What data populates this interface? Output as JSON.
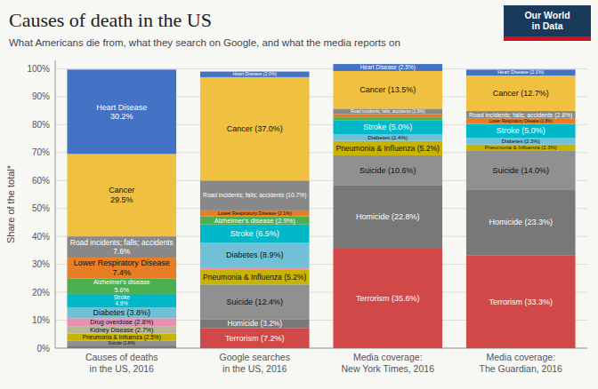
{
  "chart_data": {
    "type": "bar",
    "stacked": true,
    "title": "Causes of death in the US",
    "subtitle": "What Americans die from, what they search on Google, and what the media reports on",
    "y_label": "Share of the total*",
    "annotations": [
      "Our World",
      "in Data"
    ],
    "categories": [
      "Causes of deaths\nin the US, 2016",
      "Google searches\nin the US, 2016",
      "Media coverage:\nNew York Times, 2016",
      "Media coverage:\nThe Guardian, 2016"
    ],
    "ylim": [
      0,
      103
    ],
    "yticks": [
      {
        "value": 0,
        "label": "0%"
      },
      {
        "value": 10,
        "label": "10%"
      },
      {
        "value": 20,
        "label": "20%"
      },
      {
        "value": 30,
        "label": "30%"
      },
      {
        "value": 40,
        "label": "40%"
      },
      {
        "value": 50,
        "label": "50%"
      },
      {
        "value": 60,
        "label": "60%"
      },
      {
        "value": 70,
        "label": "70%"
      },
      {
        "value": 80,
        "label": "80%"
      },
      {
        "value": 90,
        "label": "90%"
      },
      {
        "value": 100,
        "label": "100%"
      }
    ],
    "grid": true,
    "data_labels": true,
    "series": [
      {
        "name": "Terrorism",
        "color": "#D04848",
        "values": [
          0.01,
          7.2,
          35.6,
          33.3
        ],
        "value_labels": [
          null,
          "Terrorism (7.2%)",
          "Terrorism (35.6%)",
          "Terrorism (33.3%)"
        ]
      },
      {
        "name": "Homicide",
        "color": "#787878",
        "values": [
          0.9,
          3.2,
          22.8,
          23.3
        ],
        "value_labels": [
          null,
          "Homicide (3.2%)",
          "Homicide (22.8%)",
          "Homicide (23.3%)"
        ]
      },
      {
        "name": "Suicide",
        "color": "#909090",
        "values": [
          1.8,
          12.4,
          10.6,
          14.0
        ],
        "value_labels": [
          "Suicide (1.8%)",
          "Suicide (12.4%)",
          "Suicide (10.6%)",
          "Suicide (14.0%)"
        ]
      },
      {
        "name": "Pneumonia & Influenza",
        "color": "#C8B400",
        "values": [
          2.5,
          5.2,
          5.2,
          2.3
        ],
        "value_labels": [
          "Pneumonia & Influenza (2.5%)",
          "Pneumonia & Influenza (5.2%)",
          "Pneumonia & Influenza (5.2%)",
          "Pneumonia & Influenza (2.3%)"
        ]
      },
      {
        "name": "Kidney Disease",
        "color": "#B8B898",
        "values": [
          2.7,
          0.0,
          0.0,
          0.0
        ],
        "value_labels": [
          "Kidney Disease (2.7%)",
          null,
          null,
          null
        ]
      },
      {
        "name": "Drug overdose",
        "color": "#E890B0",
        "values": [
          2.8,
          0.9,
          0.0,
          0.0
        ],
        "value_labels": [
          "Drug overdose (2.8%)",
          null,
          null,
          null
        ]
      },
      {
        "name": "Diabetes",
        "color": "#70C0D8",
        "values": [
          3.8,
          8.9,
          2.4,
          2.3
        ],
        "value_labels": [
          "Diabetes (3.8%)",
          "Diabetes (8.9%)",
          "Diabetes (2.4%)",
          "Diabetes (2.3%)"
        ]
      },
      {
        "name": "Stroke",
        "color": "#00B8C8",
        "values": [
          4.9,
          6.5,
          5.0,
          5.0
        ],
        "value_labels": [
          "Stroke\n4.9%",
          "Stroke (6.5%)",
          "Stroke (5.0%)",
          "Stroke (5.0%)"
        ]
      },
      {
        "name": "Alzheimer's disease",
        "color": "#4CAF50",
        "values": [
          5.6,
          2.9,
          1.0,
          0.1
        ],
        "value_labels": [
          "Alzheimer's disease\n5.6%",
          "Alzheimer's disease (2.9%)",
          null,
          null
        ]
      },
      {
        "name": "Lower Respiratory Disease",
        "color": "#E87D23",
        "values": [
          7.4,
          2.1,
          1.2,
          1.8
        ],
        "value_labels": [
          "Lower Respiratory Disease\n7.4%",
          "Lower Respiratory Disease (2.1%)",
          null,
          "Lower Respiratory Disease (1.8%)"
        ]
      },
      {
        "name": "Road incidents; falls; accidents",
        "color": "#888888",
        "values": [
          7.6,
          10.7,
          1.9,
          2.8
        ],
        "value_labels": [
          "Road incidents; falls; accidents\n7.6%",
          "Road incidents; falls; accidents (10.7%)",
          "Road incidents; falls; accidents (1.9%)",
          "Road incidents; falls; accidents (2.8%)"
        ]
      },
      {
        "name": "Cancer",
        "color": "#F0C040",
        "values": [
          29.5,
          37.0,
          13.5,
          12.7
        ],
        "value_labels": [
          "Cancer\n29.5%",
          "Cancer (37.0%)",
          "Cancer (13.5%)",
          "Cancer (12.7%)"
        ]
      },
      {
        "name": "Heart Disease",
        "color": "#4472C4",
        "values": [
          30.2,
          2.0,
          2.5,
          2.1
        ],
        "value_labels": [
          "Heart Disease\n30.2%",
          "Heart Disease (2.0%)",
          "Heart Disease (2.5%)",
          "Heart Disease (2.1%)"
        ]
      }
    ]
  }
}
